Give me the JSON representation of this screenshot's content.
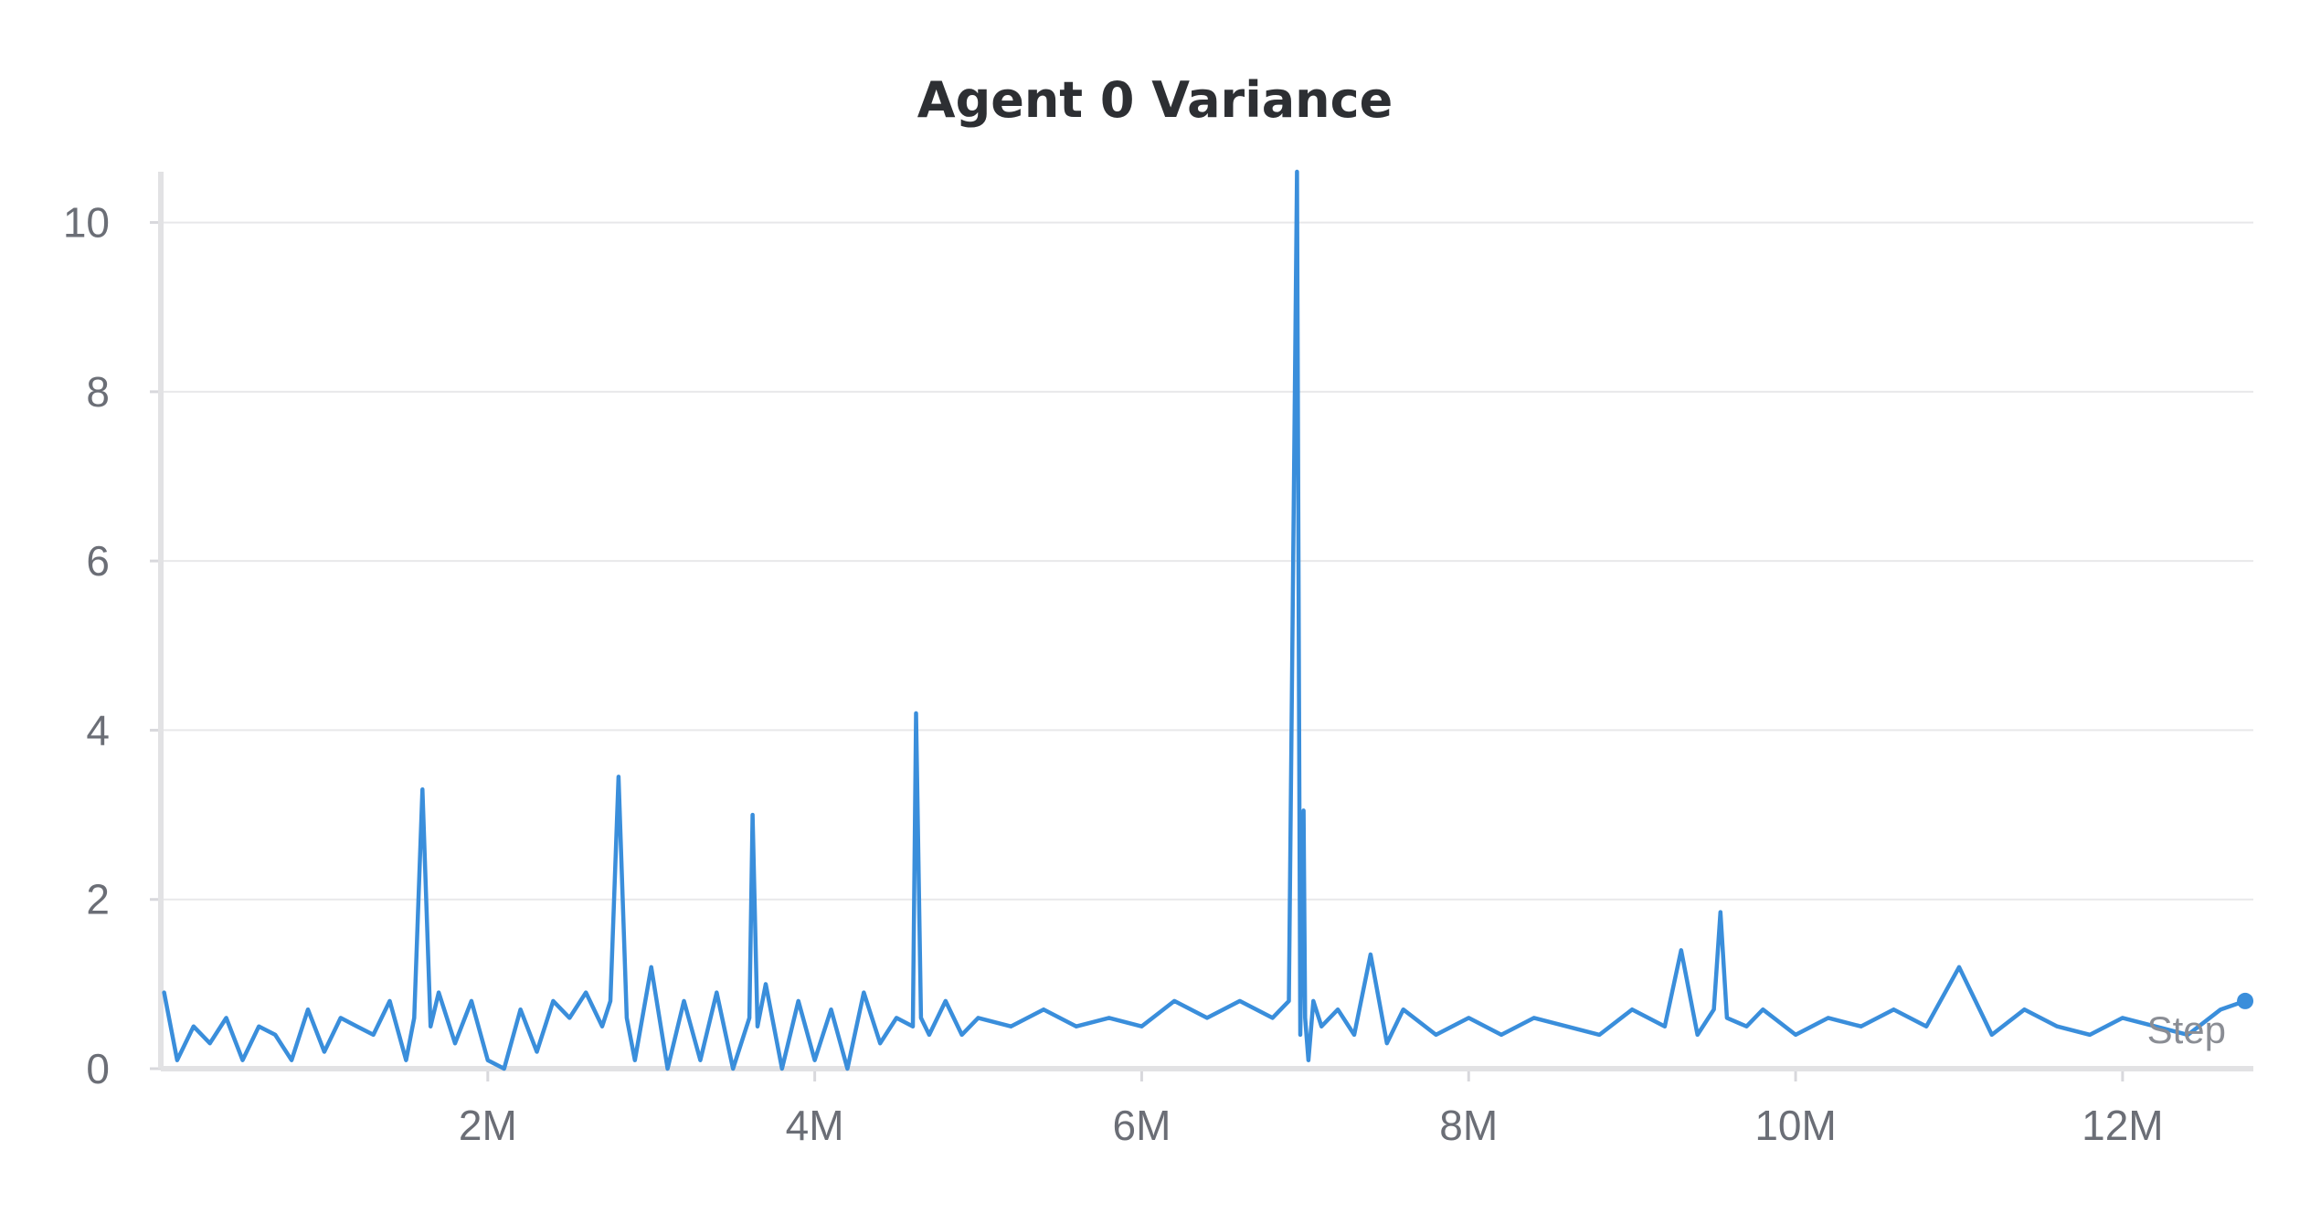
{
  "chart_data": {
    "type": "line",
    "title": "Agent 0 Variance",
    "xlabel": "Step",
    "ylabel": "",
    "xlim": [
      0,
      12800000
    ],
    "ylim": [
      0,
      10.6
    ],
    "x_ticks": [
      {
        "value": 2000000,
        "label": "2M"
      },
      {
        "value": 4000000,
        "label": "4M"
      },
      {
        "value": 6000000,
        "label": "6M"
      },
      {
        "value": 8000000,
        "label": "8M"
      },
      {
        "value": 10000000,
        "label": "10M"
      },
      {
        "value": 12000000,
        "label": "12M"
      }
    ],
    "y_ticks": [
      {
        "value": 0,
        "label": "0"
      },
      {
        "value": 2,
        "label": "2"
      },
      {
        "value": 4,
        "label": "4"
      },
      {
        "value": 6,
        "label": "6"
      },
      {
        "value": 8,
        "label": "8"
      },
      {
        "value": 10,
        "label": "10"
      }
    ],
    "grid": true,
    "series_color": "#3a8edb",
    "series": [
      {
        "x": [
          20000,
          100000,
          200000,
          300000,
          400000,
          500000,
          600000,
          700000,
          800000,
          900000,
          1000000,
          1100000,
          1200000,
          1300000,
          1400000,
          1500000,
          1550000,
          1600000,
          1650000,
          1700000,
          1800000,
          1900000,
          2000000,
          2100000,
          2200000,
          2300000,
          2400000,
          2500000,
          2600000,
          2700000,
          2750000,
          2800000,
          2850000,
          2900000,
          3000000,
          3100000,
          3200000,
          3300000,
          3400000,
          3500000,
          3600000,
          3620000,
          3650000,
          3700000,
          3800000,
          3900000,
          4000000,
          4100000,
          4200000,
          4300000,
          4400000,
          4500000,
          4600000,
          4620000,
          4650000,
          4700000,
          4800000,
          4900000,
          5000000,
          5200000,
          5400000,
          5600000,
          5800000,
          6000000,
          6200000,
          6400000,
          6600000,
          6800000,
          6900000,
          6950000,
          6970000,
          6990000,
          7000000,
          7020000,
          7050000,
          7100000,
          7200000,
          7300000,
          7400000,
          7500000,
          7600000,
          7800000,
          8000000,
          8200000,
          8400000,
          8600000,
          8800000,
          9000000,
          9200000,
          9300000,
          9400000,
          9500000,
          9540000,
          9580000,
          9700000,
          9800000,
          10000000,
          10200000,
          10400000,
          10600000,
          10800000,
          11000000,
          11200000,
          11400000,
          11600000,
          11800000,
          12000000,
          12200000,
          12400000,
          12600000,
          12750000
        ],
        "y": [
          0.9,
          0.1,
          0.5,
          0.3,
          0.6,
          0.1,
          0.5,
          0.4,
          0.1,
          0.7,
          0.2,
          0.6,
          0.5,
          0.4,
          0.8,
          0.1,
          0.6,
          3.3,
          0.5,
          0.9,
          0.3,
          0.8,
          0.1,
          0.0,
          0.7,
          0.2,
          0.8,
          0.6,
          0.9,
          0.5,
          0.8,
          3.45,
          0.6,
          0.1,
          1.2,
          0.0,
          0.8,
          0.1,
          0.9,
          0.0,
          0.6,
          3.0,
          0.5,
          1.0,
          0.0,
          0.8,
          0.1,
          0.7,
          0.0,
          0.9,
          0.3,
          0.6,
          0.5,
          4.2,
          0.6,
          0.4,
          0.8,
          0.4,
          0.6,
          0.5,
          0.7,
          0.5,
          0.6,
          0.5,
          0.8,
          0.6,
          0.8,
          0.6,
          0.8,
          10.6,
          0.4,
          3.05,
          0.6,
          0.1,
          0.8,
          0.5,
          0.7,
          0.4,
          1.35,
          0.3,
          0.7,
          0.4,
          0.6,
          0.4,
          0.6,
          0.5,
          0.4,
          0.7,
          0.5,
          1.4,
          0.4,
          0.7,
          1.85,
          0.6,
          0.5,
          0.7,
          0.4,
          0.6,
          0.5,
          0.7,
          0.5,
          1.2,
          0.4,
          0.7,
          0.5,
          0.4,
          0.6,
          0.5,
          0.4,
          0.7,
          0.8
        ]
      }
    ]
  }
}
